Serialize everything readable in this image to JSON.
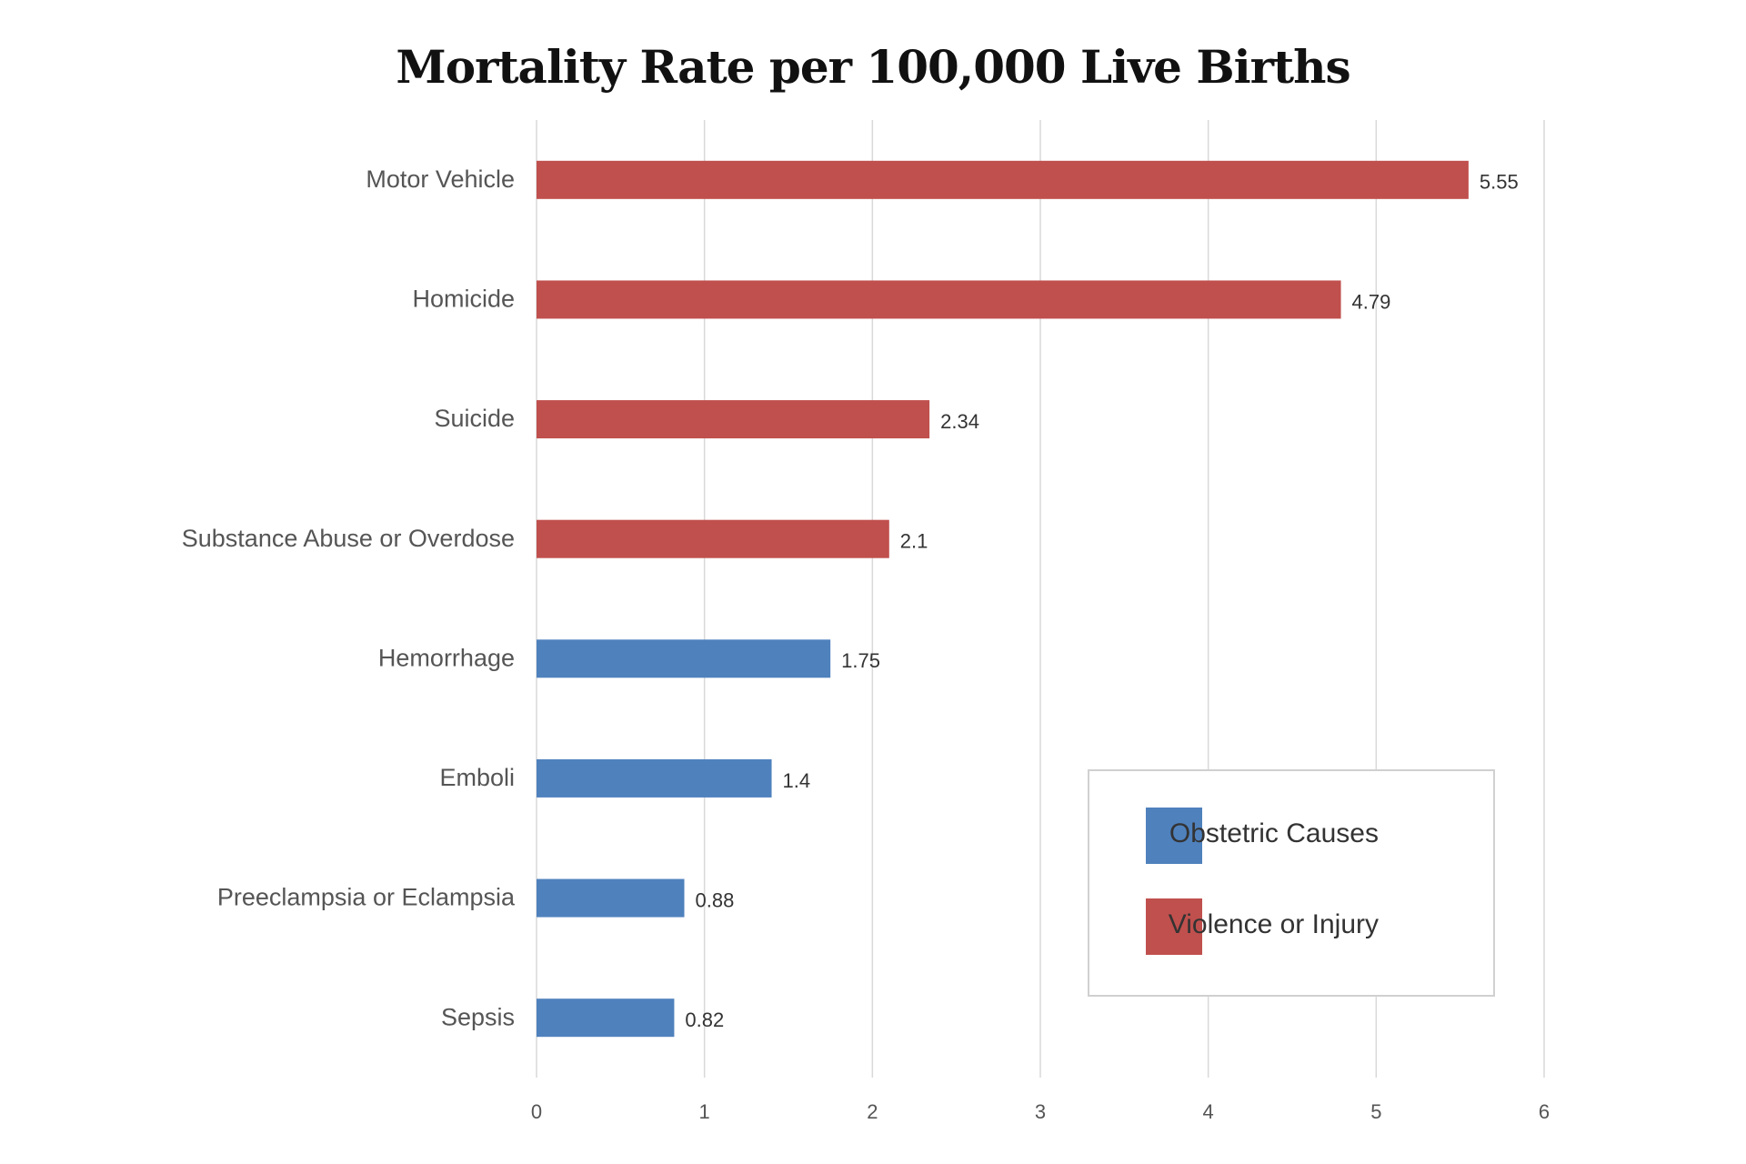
{
  "chart_data": {
    "type": "bar",
    "orientation": "horizontal",
    "title": "Mortality Rate per 100,000 Live Births",
    "xlabel": "",
    "ylabel": "",
    "xlim": [
      0,
      6
    ],
    "x_ticks": [
      "0",
      "1",
      "2",
      "3",
      "4",
      "5",
      "6"
    ],
    "grid": true,
    "legend_placement": "bottom-right",
    "categories": [
      "Motor Vehicle",
      "Homicide",
      "Suicide",
      "Substance Abuse or Overdose",
      "Hemorrhage",
      "Emboli",
      "Preeclampsia or Eclampsia",
      "Sepsis"
    ],
    "values": [
      5.55,
      4.79,
      2.34,
      2.1,
      1.75,
      1.4,
      0.88,
      0.82
    ],
    "value_labels": [
      "5.55",
      "4.79",
      "2.34",
      "2.1",
      "1.75",
      "1.4",
      "0.88",
      "0.82"
    ],
    "groups": [
      "Violence or Injury",
      "Violence or Injury",
      "Violence or Injury",
      "Violence or Injury",
      "Obstetric Causes",
      "Obstetric Causes",
      "Obstetric Causes",
      "Obstetric Causes"
    ],
    "legend": [
      {
        "name": "Obstetric Causes",
        "color": "#4f81bd"
      },
      {
        "name": "Violence or Injury",
        "color": "#c0504d"
      }
    ],
    "colors": {
      "Obstetric Causes": "#4f81bd",
      "Violence or Injury": "#c0504d",
      "grid": "#d9d9d9"
    }
  }
}
